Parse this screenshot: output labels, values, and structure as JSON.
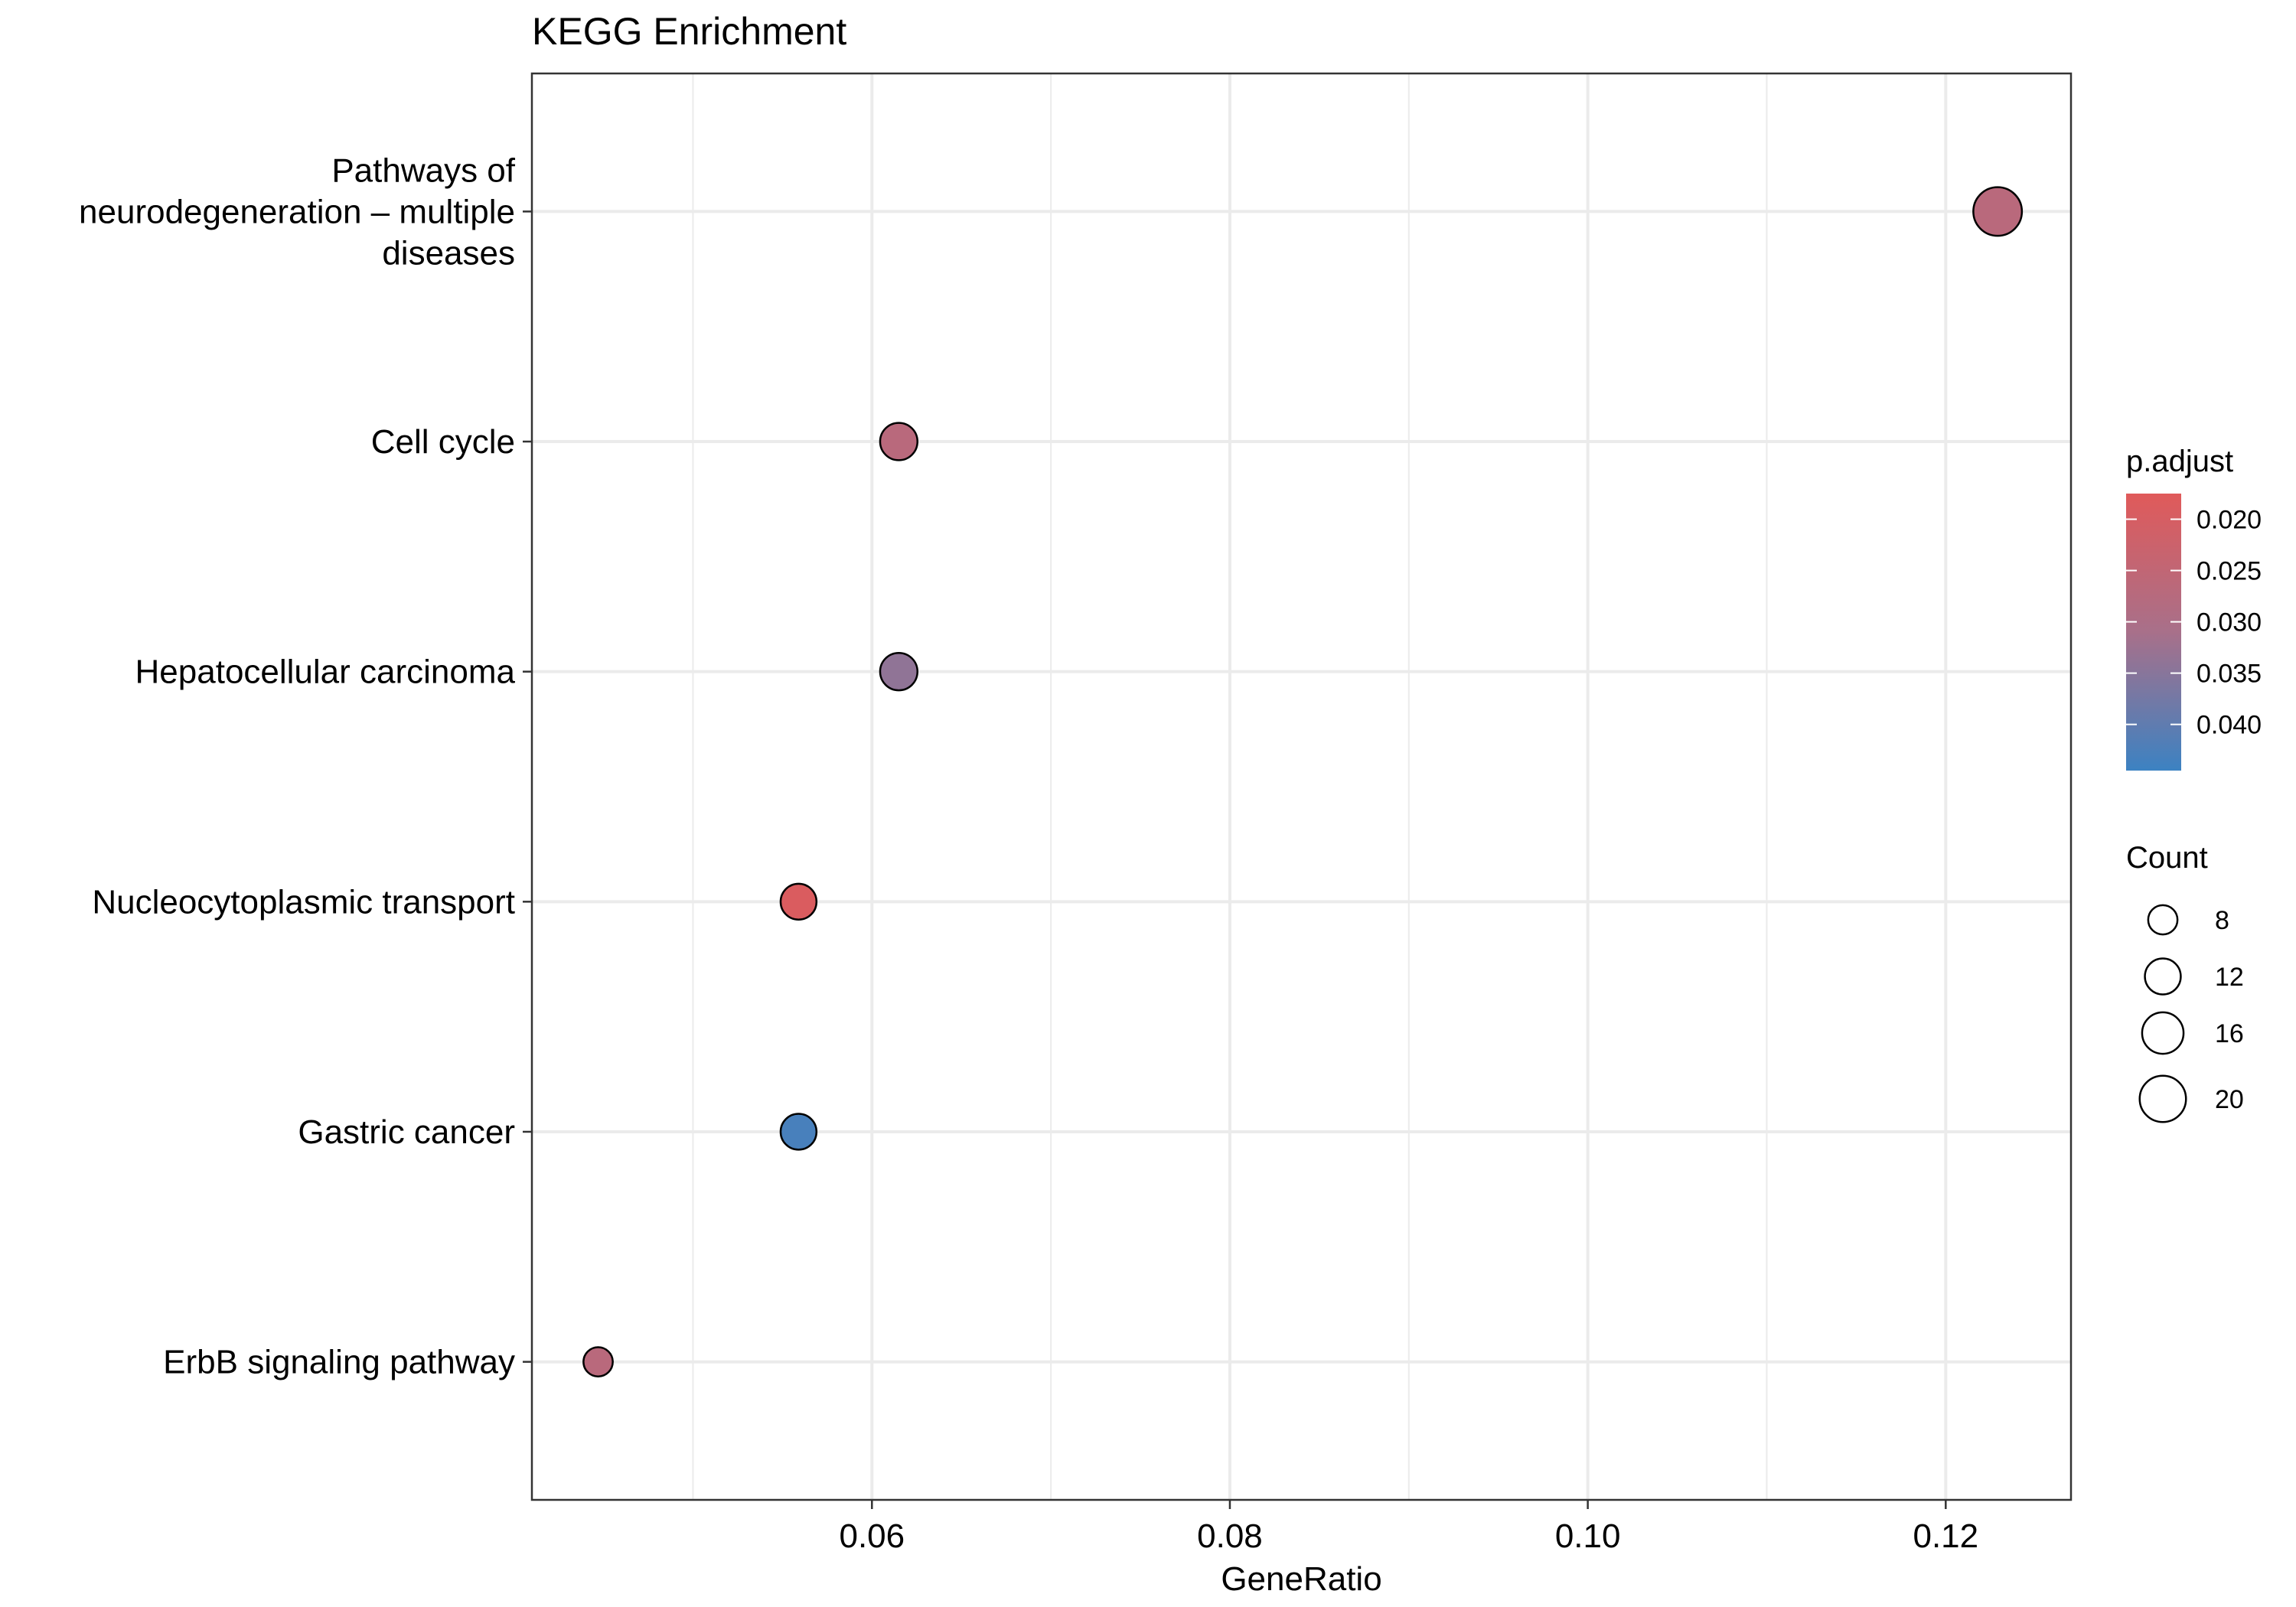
{
  "chart_data": {
    "type": "scatter",
    "title": "KEGG Enrichment",
    "xlabel": "GeneRatio",
    "ylabel": "",
    "xlim": [
      0.041,
      0.127
    ],
    "x_ticks": [
      0.06,
      0.08,
      0.1,
      0.12
    ],
    "x_tick_labels": [
      "0.06",
      "0.08",
      "0.10",
      "0.12"
    ],
    "x_minor_ticks": [
      0.05,
      0.07,
      0.09,
      0.11
    ],
    "grid": true,
    "categories": [
      "ErbB signaling pathway",
      "Gastric cancer",
      "Nucleocytoplasmic transport",
      "Hepatocellular carcinoma",
      "Cell cycle",
      "Pathways of neurodegeneration – multiple diseases"
    ],
    "category_label_lines": [
      [
        "ErbB signaling pathway"
      ],
      [
        "Gastric cancer"
      ],
      [
        "Nucleocytoplasmic transport"
      ],
      [
        "Hepatocellular carcinoma"
      ],
      [
        "Cell cycle"
      ],
      [
        "Pathways of",
        "neurodegeneration – multiple",
        "diseases"
      ]
    ],
    "points": [
      {
        "category": "ErbB signaling pathway",
        "x": 0.0447,
        "count": 8,
        "p_adjust": 0.027
      },
      {
        "category": "Gastric cancer",
        "x": 0.0559,
        "count": 12,
        "p_adjust": 0.043
      },
      {
        "category": "Nucleocytoplasmic transport",
        "x": 0.0559,
        "count": 12,
        "p_adjust": 0.019
      },
      {
        "category": "Hepatocellular carcinoma",
        "x": 0.0615,
        "count": 13,
        "p_adjust": 0.034
      },
      {
        "category": "Cell cycle",
        "x": 0.0615,
        "count": 13,
        "p_adjust": 0.027
      },
      {
        "category": "Pathways of neurodegeneration – multiple diseases",
        "x": 0.1229,
        "count": 22,
        "p_adjust": 0.027
      }
    ],
    "color_legend": {
      "title": "p.adjust",
      "range": [
        0.0175,
        0.0445
      ],
      "ticks": [
        0.02,
        0.025,
        0.03,
        0.035,
        0.04
      ],
      "tick_labels": [
        "0.020",
        "0.025",
        "0.030",
        "0.035",
        "0.040"
      ],
      "low_color": "#e05a5a",
      "mid_color": "#a8708a",
      "high_color": "#3c82c2"
    },
    "size_legend": {
      "title": "Count",
      "values": [
        8,
        12,
        16,
        20
      ],
      "labels": [
        "8",
        "12",
        "16",
        "20"
      ]
    },
    "legend_position": "right"
  }
}
